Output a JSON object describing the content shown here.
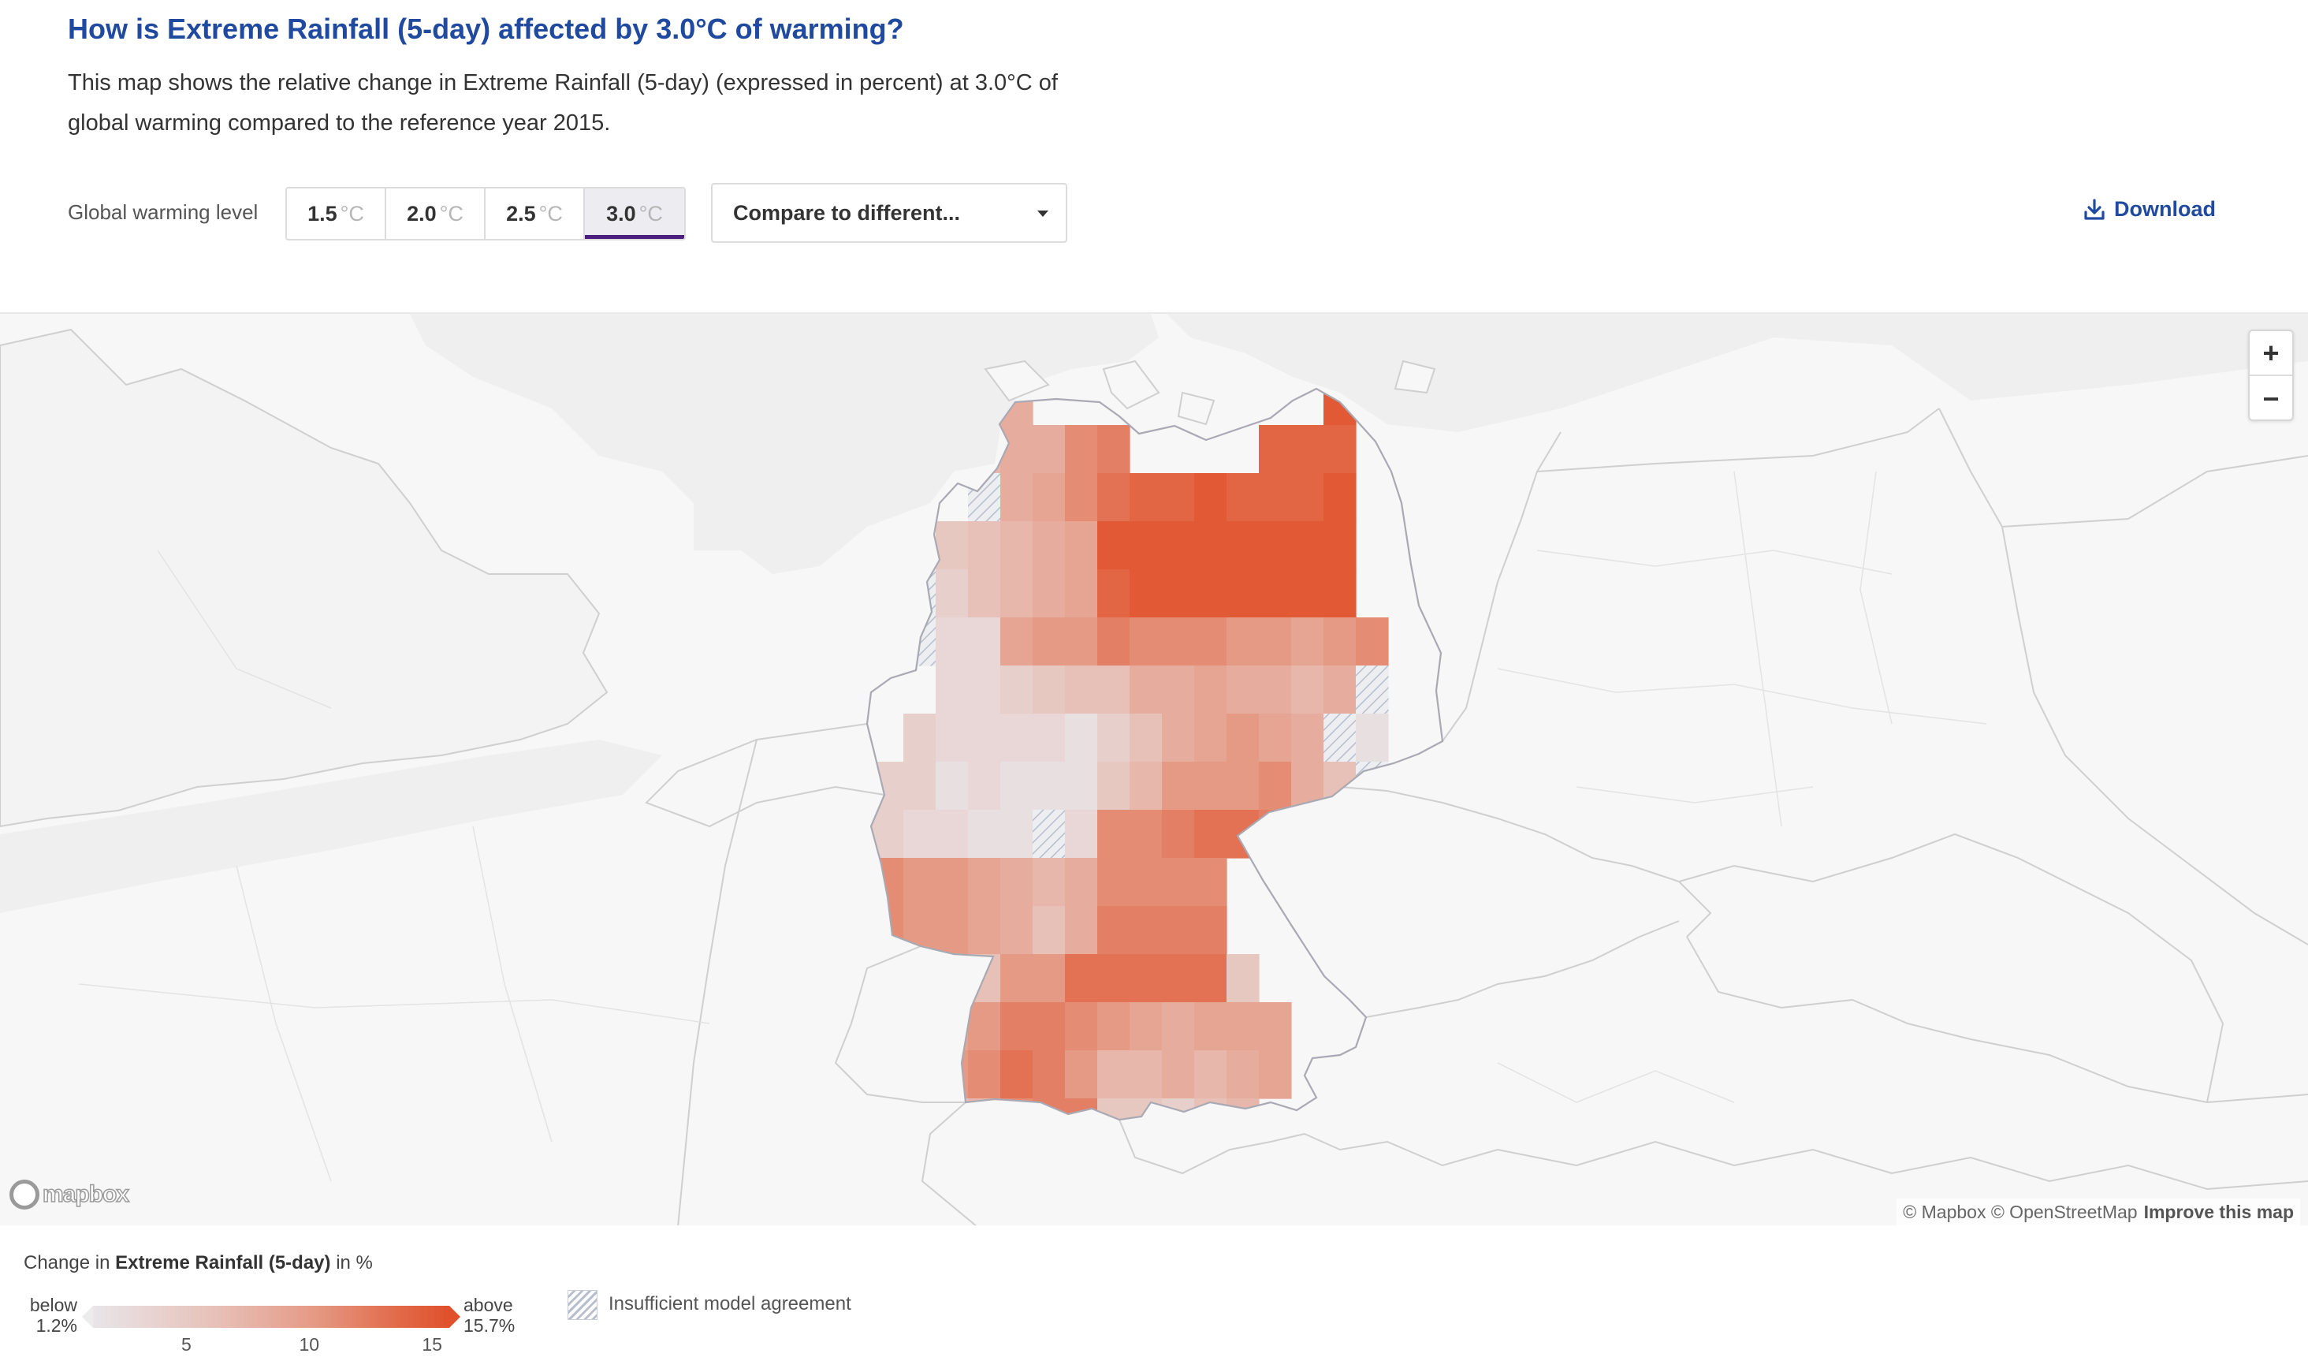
{
  "header": {
    "title": "How is Extreme Rainfall (5-day) affected by 3.0°C of warming?",
    "description_line1": "This map shows the relative change in Extreme Rainfall (5-day) (expressed in percent) at 3.0°C of",
    "description_line2": "global warming compared to the reference year 2015."
  },
  "controls": {
    "gwl_label": "Global warming level",
    "levels": [
      {
        "value": "1.5",
        "unit": "°C",
        "selected": false
      },
      {
        "value": "2.0",
        "unit": "°C",
        "selected": false
      },
      {
        "value": "2.5",
        "unit": "°C",
        "selected": false
      },
      {
        "value": "3.0",
        "unit": "°C",
        "selected": true
      }
    ],
    "compare_label": "Compare to different...",
    "download_label": "Download"
  },
  "map": {
    "zoom_in": "+",
    "zoom_out": "−",
    "logo": "mapbox",
    "attribution": "© Mapbox © OpenStreetMap",
    "improve": "Improve this map",
    "country_outline": "Germany",
    "cell_values_percent": [
      [
        null,
        null,
        null,
        7,
        8,
        null,
        null,
        null,
        null,
        null,
        null,
        null,
        null,
        null,
        15,
        null
      ],
      [
        null,
        null,
        null,
        7,
        8,
        8,
        11,
        12,
        null,
        null,
        null,
        null,
        14,
        14,
        14,
        null
      ],
      [
        null,
        null,
        null,
        "h",
        8,
        9,
        11,
        13,
        14,
        14,
        15,
        14,
        14,
        14,
        15,
        null
      ],
      [
        null,
        null,
        5,
        6,
        7,
        8,
        9,
        15,
        15,
        15,
        15,
        15,
        15,
        15,
        15,
        null
      ],
      [
        null,
        "h",
        4,
        6,
        7,
        8,
        9,
        14,
        15,
        15,
        15,
        15,
        15,
        15,
        15,
        null
      ],
      [
        null,
        "h",
        3,
        3,
        9,
        10,
        10,
        12,
        11,
        11,
        11,
        10,
        10,
        9,
        10,
        11
      ],
      [
        null,
        null,
        3,
        3,
        4,
        5,
        6,
        6,
        8,
        8,
        9,
        8,
        8,
        7,
        8,
        "h"
      ],
      [
        null,
        4,
        3,
        3,
        3,
        3,
        2,
        4,
        6,
        8,
        9,
        10,
        9,
        8,
        "h",
        2
      ],
      [
        4,
        4,
        2,
        3,
        2,
        2,
        2,
        5,
        7,
        10,
        10,
        10,
        11,
        8,
        6,
        "h"
      ],
      [
        4,
        3,
        3,
        2,
        2,
        "h",
        3,
        11,
        11,
        12,
        13,
        13,
        12,
        8,
        8,
        null
      ],
      [
        11,
        10,
        10,
        9,
        8,
        7,
        8,
        11,
        11,
        11,
        11,
        null,
        null,
        null,
        null,
        null
      ],
      [
        11,
        10,
        10,
        9,
        8,
        6,
        8,
        12,
        12,
        12,
        12,
        null,
        null,
        null,
        null,
        null
      ],
      [
        10,
        8,
        8,
        6,
        10,
        10,
        13,
        13,
        13,
        13,
        13,
        5,
        null,
        null,
        null,
        null
      ],
      [
        null,
        null,
        9,
        10,
        12,
        12,
        11,
        10,
        9,
        8,
        9,
        9,
        9,
        null,
        null,
        null
      ],
      [
        null,
        null,
        10,
        11,
        13,
        12,
        10,
        7,
        7,
        8,
        7,
        8,
        9,
        null,
        null,
        null
      ],
      [
        null,
        null,
        6,
        7,
        11,
        12,
        12,
        5,
        5,
        4,
        6,
        7,
        null,
        null,
        null,
        null
      ]
    ]
  },
  "legend": {
    "title_prefix": "Change in",
    "title_variable": "Extreme Rainfall (5-day)",
    "title_suffix": "in %",
    "below_word": "below",
    "below_value": "1.2%",
    "above_word": "above",
    "above_value": "15.7%",
    "ticks": [
      "5",
      "10",
      "15"
    ],
    "tick_values": [
      5,
      10,
      15
    ],
    "range_min": 1.2,
    "range_max": 15.7,
    "hatch_label": "Insufficient model agreement",
    "colors": {
      "low": "#e8e5e8",
      "high": "#e0502b"
    }
  },
  "colors": {
    "title": "#1f4aa0",
    "accent": "#4b1f7e",
    "land": "#f7f7f7",
    "border": "#cfcfcf"
  }
}
